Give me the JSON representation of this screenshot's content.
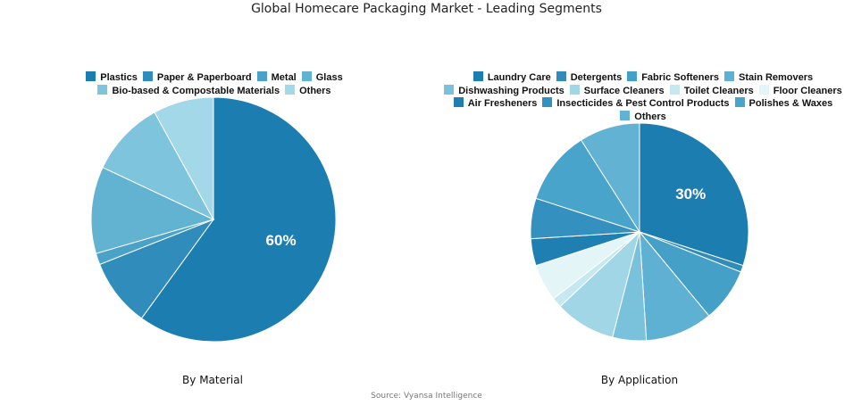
{
  "title": "Global Homecare Packaging Market - Leading Segments",
  "source": "Source: Vyansa Intelligence",
  "chart_data": [
    {
      "type": "pie",
      "caption": "By Material",
      "categories": [
        "Plastics",
        "Paper & Paperboard",
        "Metal",
        "Glass",
        "Bio-based & Compostable Materials",
        "Others"
      ],
      "values": [
        60,
        9,
        1.5,
        11.5,
        10,
        8
      ],
      "colors": [
        "#1c7db0",
        "#2f8cbb",
        "#4aa2c9",
        "#62b3d2",
        "#7dc4dc",
        "#a3d8e8"
      ],
      "labels": [
        "60%",
        "",
        "",
        "",
        "",
        ""
      ],
      "legend_position": "top"
    },
    {
      "type": "pie",
      "caption": "By Application",
      "categories": [
        "Laundry Care",
        "Detergents",
        "Fabric Softeners",
        "Stain Removers",
        "Dishwashing Products",
        "Surface Cleaners",
        "Toilet Cleaners",
        "Floor Cleaners",
        "Air Fresheners",
        "Insecticides & Pest Control Products",
        "Polishes & Waxes",
        "Others"
      ],
      "values": [
        30,
        1,
        8,
        10,
        5,
        9,
        1.5,
        5.5,
        4,
        6,
        11,
        9
      ],
      "colors": [
        "#1c7db0",
        "#2f8cbb",
        "#45a0c8",
        "#5fb1d3",
        "#7ac2dc",
        "#a1d6e6",
        "#c6e8f0",
        "#e4f5f8",
        "#1f7fb2",
        "#3390bf",
        "#48a4cb",
        "#62b2d3"
      ],
      "labels": [
        "30%",
        "",
        "",
        "",
        "",
        "",
        "",
        "",
        "",
        "",
        "",
        ""
      ],
      "legend_position": "top"
    }
  ]
}
